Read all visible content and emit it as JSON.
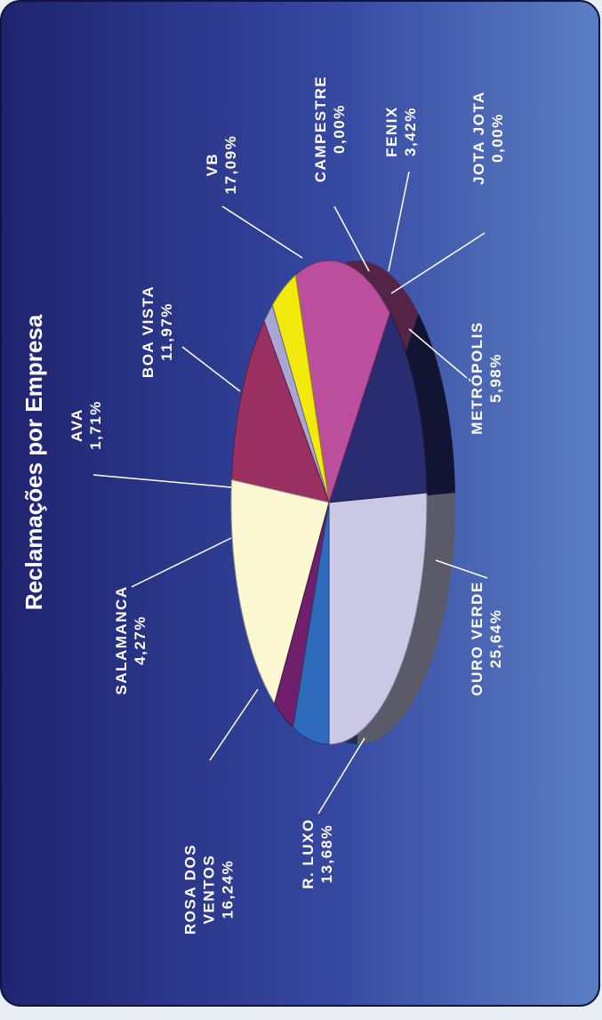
{
  "chart_data": {
    "type": "pie",
    "title": "Reclamações por Empresa",
    "unit": "%",
    "slices": [
      {
        "name": "OURO VERDE",
        "value": 25.64,
        "label": "25,64%",
        "color": "#cbc8e6"
      },
      {
        "name": "R. LUXO",
        "value": 13.68,
        "label": "13,68%",
        "color": "#2a2c72"
      },
      {
        "name": "ROSA DOS VENTOS",
        "value": 16.24,
        "label": "16,24%",
        "color": "#bb4f9d"
      },
      {
        "name": "SALAMANCA",
        "value": 4.27,
        "label": "4,27%",
        "color": "#f1ea0c"
      },
      {
        "name": "AVA",
        "value": 1.71,
        "label": "1,71%",
        "color": "#a7a6d4"
      },
      {
        "name": "BOA VISTA",
        "value": 11.97,
        "label": "11,97%",
        "color": "#9a3062"
      },
      {
        "name": "VB",
        "value": 17.09,
        "label": "17,09%",
        "color": "#fbf8d2"
      },
      {
        "name": "CAMPESTRE",
        "value": 0.0,
        "label": "0,00%",
        "color": "#6b2a72"
      },
      {
        "name": "FENIX",
        "value": 3.42,
        "label": "3,42%",
        "color": "#6f1f6c"
      },
      {
        "name": "JOTA JOTA",
        "value": 0.0,
        "label": "0,00%",
        "color": "#c0662a"
      },
      {
        "name": "METRÓPOLIS",
        "value": 5.98,
        "label": "5,98%",
        "color": "#2f6bbd"
      }
    ]
  },
  "colors": {
    "background_dark": "#1f2470",
    "background_light": "#5b7fc4",
    "text": "#ffffff",
    "leader_line": "#ffffff"
  }
}
